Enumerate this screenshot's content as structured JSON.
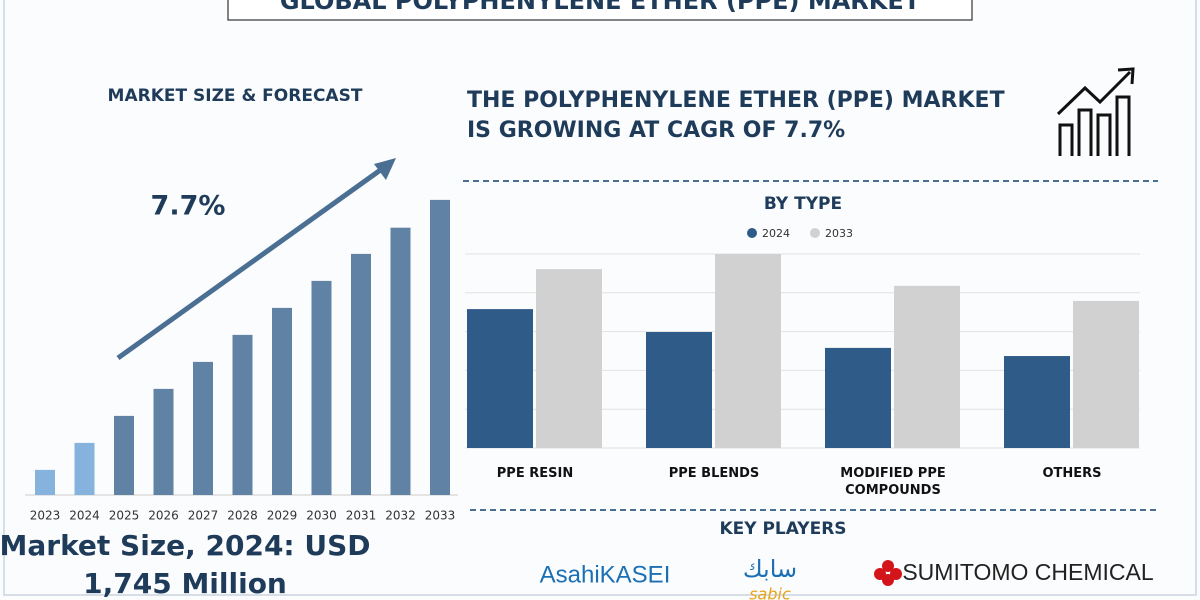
{
  "header": {
    "title": "GLOBAL POLYPHENYLENE ETHER (PPE) MARKET"
  },
  "summary": {
    "statement": [
      "THE POLYPHENYLENE ETHER (PPE) MARKET",
      "IS GROWING AT CAGR OF 7.7%"
    ],
    "market_size": [
      "Market Size, 2024: USD",
      "1,745 Million"
    ]
  },
  "chart_data": [
    {
      "type": "bar",
      "title": "MARKET SIZE & FORECAST",
      "annotation": "7.7%",
      "categories": [
        "2023",
        "2024",
        "2025",
        "2026",
        "2027",
        "2028",
        "2029",
        "2030",
        "2031",
        "2032",
        "2033"
      ],
      "values": [
        0.93,
        1.93,
        2.93,
        3.93,
        4.93,
        5.93,
        6.93,
        7.93,
        8.93,
        9.9,
        10.93
      ],
      "colors": [
        "#86b3de",
        "#86b3de",
        "#5f82a5",
        "#5f82a5",
        "#5f82a5",
        "#5f82a5",
        "#5f82a5",
        "#5f82a5",
        "#5f82a5",
        "#5f82a5",
        "#5f82a5"
      ],
      "ylim": [
        0,
        11
      ]
    },
    {
      "type": "grouped-bar",
      "title": "BY TYPE",
      "categories": [
        "PPE RESIN",
        "PPE BLENDS",
        "MODIFIED PPE COMPOUNDS",
        "OTHERS"
      ],
      "series": [
        {
          "name": "2024",
          "color": "#2e5b87",
          "values": [
            3.58,
            2.99,
            2.58,
            2.37
          ]
        },
        {
          "name": "2033",
          "color": "#d1d1d1",
          "values": [
            4.61,
            5.0,
            4.18,
            3.79
          ]
        }
      ],
      "ylim": [
        0,
        5
      ],
      "yticks": [
        0,
        1,
        2,
        3,
        4,
        5
      ],
      "grid": true
    }
  ],
  "key_players": {
    "title": "KEY PLAYERS",
    "names": [
      "AsahiKASEI",
      "سابك",
      "sabic",
      "SUMITOMO CHEMICAL"
    ]
  }
}
